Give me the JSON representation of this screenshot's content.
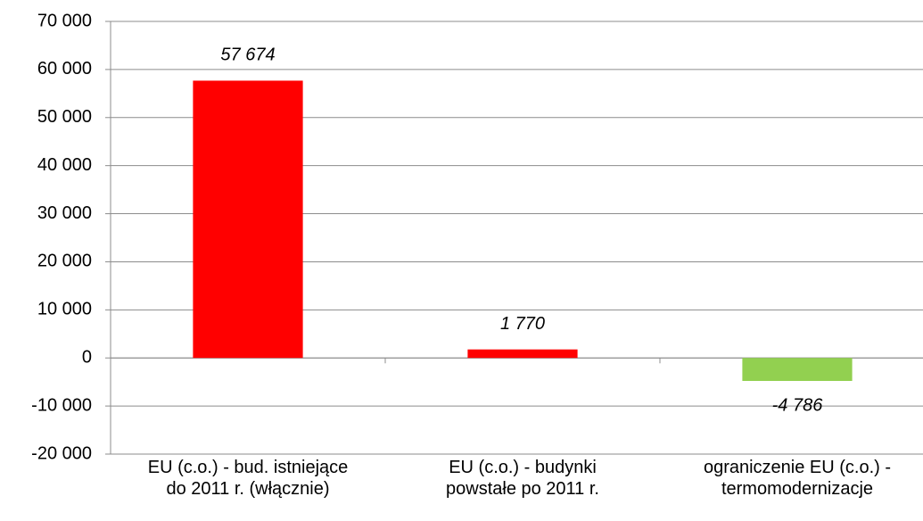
{
  "chart_data": {
    "type": "bar",
    "categories": [
      "EU (c.o.) - bud. istniejące\ndo 2011 r. (włącznie)",
      "EU (c.o.) - budynki\npowstałe po 2011 r.",
      "ograniczenie EU (c.o.) -\ntermomodernizacje"
    ],
    "values": [
      57674,
      1770,
      -4786
    ],
    "value_labels": [
      "57 674",
      "1 770",
      "-4 786"
    ],
    "colors": [
      "#ff0000",
      "#ff0000",
      "#92d050"
    ],
    "ylim": [
      -20000,
      70000
    ],
    "yticks": [
      {
        "value": -20000,
        "label": "-20 000"
      },
      {
        "value": -10000,
        "label": "-10 000"
      },
      0,
      {
        "value": 10000,
        "label": "10 000"
      },
      {
        "value": 20000,
        "label": "20 000"
      },
      {
        "value": 30000,
        "label": "30 000"
      },
      {
        "value": 40000,
        "label": "40 000"
      },
      {
        "value": 50000,
        "label": "50 000"
      },
      {
        "value": 60000,
        "label": "60 000"
      },
      {
        "value": 70000,
        "label": "70 000"
      }
    ],
    "grid": true
  }
}
